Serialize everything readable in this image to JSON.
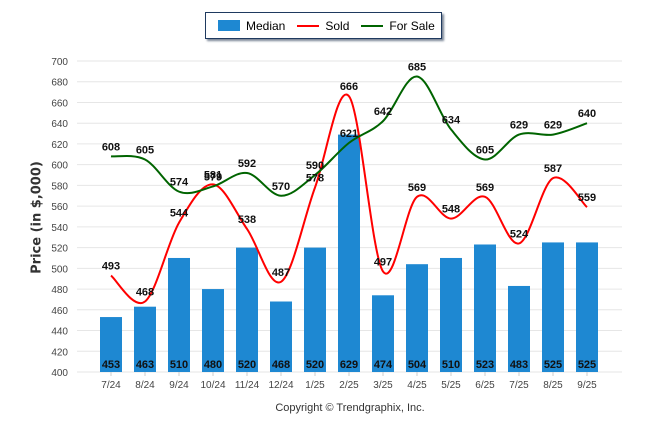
{
  "legend": {
    "items": [
      {
        "label": "Median",
        "color": "#1e88d2",
        "kind": "bar"
      },
      {
        "label": "Sold",
        "color": "#ff0000",
        "kind": "line"
      },
      {
        "label": "For Sale",
        "color": "#006400",
        "kind": "line"
      }
    ]
  },
  "copyright": "Copyright © Trendgraphix, Inc.",
  "chart_data": {
    "type": "bar",
    "title": "",
    "xlabel": "",
    "ylabel": "Price (in $,000)",
    "ylim": [
      400,
      700
    ],
    "yticks": [
      400,
      420,
      440,
      460,
      480,
      500,
      520,
      540,
      560,
      580,
      600,
      620,
      640,
      660,
      680,
      700
    ],
    "grid": true,
    "legend_position": "top-center",
    "categories": [
      "7/24",
      "8/24",
      "9/24",
      "10/24",
      "11/24",
      "12/24",
      "1/25",
      "2/25",
      "3/25",
      "4/25",
      "5/25",
      "6/25",
      "7/25",
      "8/25",
      "9/25"
    ],
    "series": [
      {
        "name": "Median",
        "type": "bar",
        "color": "#1e88d2",
        "values": [
          453,
          463,
          510,
          480,
          520,
          468,
          520,
          629,
          474,
          504,
          510,
          523,
          483,
          525,
          525
        ]
      },
      {
        "name": "Sold",
        "type": "line",
        "color": "#ff0000",
        "values": [
          493,
          468,
          544,
          581,
          538,
          487,
          578,
          666,
          497,
          569,
          548,
          569,
          524,
          587,
          559
        ]
      },
      {
        "name": "For Sale",
        "type": "line",
        "color": "#006400",
        "values": [
          608,
          605,
          574,
          579,
          592,
          570,
          590,
          621,
          642,
          685,
          634,
          605,
          629,
          629,
          640
        ]
      }
    ]
  }
}
